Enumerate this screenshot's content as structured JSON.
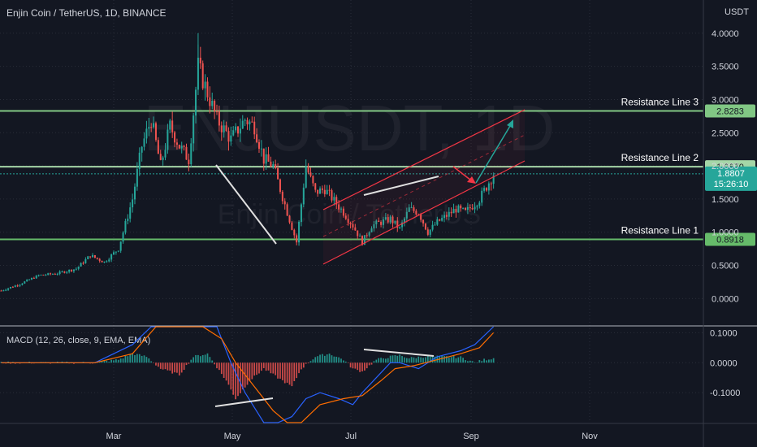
{
  "header": {
    "title": "Enjin Coin / TetherUS, 1D, BINANCE",
    "unit": "USDT",
    "macd_label": "MACD (12, 26, close, 9, EMA, EMA)"
  },
  "watermark": {
    "symbol": "ENJUSDT, 1D",
    "name": "Enjin Coin / TetherUS"
  },
  "chart_data": {
    "type": "candlestick",
    "exchange": "BINANCE",
    "price_axis": {
      "ticks": [
        "4.0000",
        "3.5000",
        "3.0000",
        "2.5000",
        "2.0000",
        "1.5000",
        "1.0000",
        "0.5000",
        "0.0000"
      ],
      "values": [
        4.0,
        3.5,
        3.0,
        2.5,
        2.0,
        1.5,
        1.0,
        0.5,
        0.0
      ],
      "range": [
        -0.4,
        4.5
      ]
    },
    "macd_axis": {
      "ticks": [
        "0.1000",
        "0.0000",
        "-0.1000"
      ],
      "values": [
        0.1,
        0.0,
        -0.1
      ],
      "range": [
        -0.2,
        0.12
      ]
    },
    "time_axis": {
      "ticks": [
        "Mar",
        "May",
        "Jul",
        "Sep",
        "Nov"
      ]
    },
    "horizontal_levels": [
      {
        "name": "Resistance Line 3",
        "value": 2.8283,
        "tag": "2.8283",
        "color": "#81c784"
      },
      {
        "name": "Resistance Line 2",
        "value": 1.987,
        "tag": "1.9870",
        "color": "#a5d6a7"
      },
      {
        "name": "Resistance Line 1",
        "value": 0.8918,
        "tag": "0.8918",
        "color": "#66bb6a"
      }
    ],
    "last_price": {
      "value": 1.8807,
      "tag": "1.8807",
      "countdown": "15:26:10",
      "color": "#26a69a"
    },
    "anchors": [
      [
        0,
        0.12
      ],
      [
        8,
        0.22
      ],
      [
        16,
        0.35
      ],
      [
        24,
        0.38
      ],
      [
        32,
        0.45
      ],
      [
        38,
        0.65
      ],
      [
        44,
        0.55
      ],
      [
        50,
        0.75
      ],
      [
        56,
        1.5
      ],
      [
        60,
        2.3
      ],
      [
        64,
        2.7
      ],
      [
        68,
        2.0
      ],
      [
        72,
        2.6
      ],
      [
        76,
        2.3
      ],
      [
        80,
        2.1
      ],
      [
        84,
        3.5
      ],
      [
        88,
        3.1
      ],
      [
        92,
        2.7
      ],
      [
        98,
        2.4
      ],
      [
        104,
        2.7
      ],
      [
        108,
        2.6
      ],
      [
        112,
        2.1
      ],
      [
        116,
        2.0
      ],
      [
        122,
        1.3
      ],
      [
        126,
        0.85
      ],
      [
        130,
        2.0
      ],
      [
        134,
        1.6
      ],
      [
        138,
        1.65
      ],
      [
        146,
        1.3
      ],
      [
        150,
        1.1
      ],
      [
        154,
        0.85
      ],
      [
        158,
        1.1
      ],
      [
        166,
        1.2
      ],
      [
        170,
        1.05
      ],
      [
        174,
        1.35
      ],
      [
        178,
        1.3
      ],
      [
        182,
        1.0
      ],
      [
        186,
        1.15
      ],
      [
        194,
        1.35
      ],
      [
        198,
        1.3
      ],
      [
        204,
        1.5
      ],
      [
        210,
        1.88
      ]
    ],
    "macd_hist": [
      [
        0,
        0.0
      ],
      [
        20,
        0.0
      ],
      [
        40,
        0.0
      ],
      [
        50,
        0.01
      ],
      [
        56,
        0.03
      ],
      [
        62,
        0.02
      ],
      [
        68,
        -0.02
      ],
      [
        76,
        -0.04
      ],
      [
        82,
        0.02
      ],
      [
        88,
        0.03
      ],
      [
        96,
        -0.06
      ],
      [
        100,
        -0.12
      ],
      [
        106,
        -0.06
      ],
      [
        112,
        -0.02
      ],
      [
        118,
        -0.05
      ],
      [
        124,
        -0.08
      ],
      [
        128,
        -0.02
      ],
      [
        134,
        0.02
      ],
      [
        140,
        0.03
      ],
      [
        146,
        0.01
      ],
      [
        150,
        -0.02
      ],
      [
        154,
        -0.03
      ],
      [
        160,
        0.01
      ],
      [
        166,
        0.02
      ],
      [
        170,
        0.025
      ],
      [
        174,
        0.015
      ],
      [
        180,
        0.02
      ],
      [
        188,
        0.02
      ],
      [
        196,
        0.018
      ],
      [
        202,
        0.0
      ],
      [
        206,
        0.01
      ],
      [
        210,
        0.015
      ]
    ],
    "macd_line": [
      [
        0,
        0.0
      ],
      [
        40,
        0.0
      ],
      [
        56,
        0.06
      ],
      [
        64,
        0.2
      ],
      [
        76,
        0.2
      ],
      [
        84,
        0.25
      ],
      [
        92,
        0.12
      ],
      [
        98,
        0.0
      ],
      [
        104,
        -0.1
      ],
      [
        112,
        -0.2
      ],
      [
        118,
        -0.3
      ],
      [
        124,
        -0.18
      ],
      [
        130,
        -0.12
      ],
      [
        136,
        -0.1
      ],
      [
        144,
        -0.12
      ],
      [
        150,
        -0.14
      ],
      [
        154,
        -0.1
      ],
      [
        160,
        -0.05
      ],
      [
        166,
        0.0
      ],
      [
        170,
        0.0
      ],
      [
        178,
        -0.02
      ],
      [
        186,
        0.02
      ],
      [
        196,
        0.04
      ],
      [
        202,
        0.06
      ],
      [
        210,
        0.12
      ]
    ],
    "signal_line": [
      [
        0,
        0.0
      ],
      [
        40,
        0.0
      ],
      [
        56,
        0.03
      ],
      [
        66,
        0.12
      ],
      [
        76,
        0.16
      ],
      [
        86,
        0.18
      ],
      [
        94,
        0.08
      ],
      [
        100,
        0.0
      ],
      [
        108,
        -0.08
      ],
      [
        116,
        -0.16
      ],
      [
        122,
        -0.22
      ],
      [
        128,
        -0.2
      ],
      [
        136,
        -0.14
      ],
      [
        146,
        -0.12
      ],
      [
        154,
        -0.11
      ],
      [
        162,
        -0.06
      ],
      [
        168,
        -0.02
      ],
      [
        176,
        -0.01
      ],
      [
        186,
        0.01
      ],
      [
        196,
        0.03
      ],
      [
        204,
        0.05
      ],
      [
        210,
        0.1
      ]
    ]
  },
  "colors": {
    "bg": "#131722",
    "up": "#26a69a",
    "down": "#ef5350",
    "macd": "#2962ff",
    "signal": "#ff6d00",
    "channel": "#f23645"
  }
}
